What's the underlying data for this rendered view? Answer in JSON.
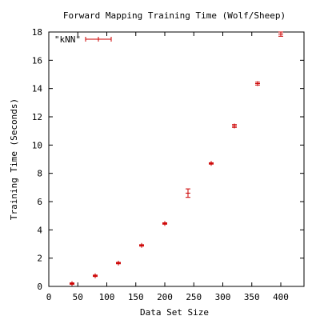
{
  "chart_data": {
    "type": "scatter",
    "title": "Forward Mapping Training Time (Wolf/Sheep)",
    "xlabel": "Data Set Size",
    "ylabel": "Training Time (Seconds)",
    "xlim": [
      0,
      440
    ],
    "ylim": [
      0,
      18
    ],
    "x_ticks": [
      "0",
      "50",
      "100",
      "150",
      "200",
      "250",
      "300",
      "350",
      "400"
    ],
    "y_ticks": [
      "0",
      "2",
      "4",
      "6",
      "8",
      "10",
      "12",
      "14",
      "16",
      "18"
    ],
    "grid": false,
    "legend_position": "top-left",
    "error_bars": "y",
    "series": [
      {
        "name": "\"kNN\"",
        "color": "#cc0000",
        "points": [
          {
            "x": 40,
            "y": 0.2,
            "err": 0.05
          },
          {
            "x": 80,
            "y": 0.75,
            "err": 0.05
          },
          {
            "x": 120,
            "y": 1.65,
            "err": 0.05
          },
          {
            "x": 160,
            "y": 2.9,
            "err": 0.05
          },
          {
            "x": 200,
            "y": 4.45,
            "err": 0.05
          },
          {
            "x": 240,
            "y": 6.6,
            "err": 0.3
          },
          {
            "x": 280,
            "y": 8.7,
            "err": 0.05
          },
          {
            "x": 320,
            "y": 11.35,
            "err": 0.1
          },
          {
            "x": 360,
            "y": 14.35,
            "err": 0.1
          },
          {
            "x": 400,
            "y": 17.85,
            "err": 0.15
          }
        ]
      }
    ]
  }
}
